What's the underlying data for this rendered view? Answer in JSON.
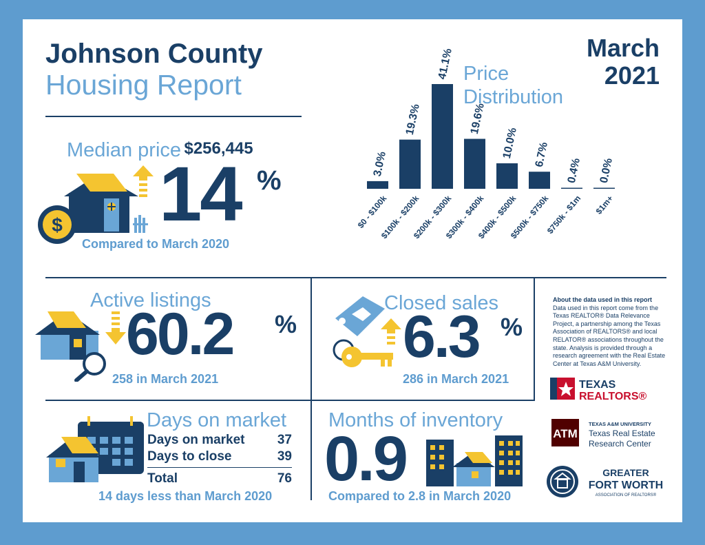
{
  "header": {
    "title_line1": "Johnson County",
    "title_line2": "Housing Report",
    "month": "March",
    "year": "2021"
  },
  "median": {
    "label": "Median price",
    "price": "$256,445",
    "change": "14",
    "unit": "%",
    "direction": "up",
    "comparison": "Compared to March 2020"
  },
  "price_distribution": {
    "title_line1": "Price",
    "title_line2": "Distribution"
  },
  "chart_data": {
    "type": "bar",
    "categories": [
      "$0 - $100k",
      "$100k - $200k",
      "$200k - $300k",
      "$300k - $400k",
      "$400k - $500k",
      "$500k - $750k",
      "$750k - $1m",
      "$1m+"
    ],
    "values": [
      3.0,
      19.3,
      41.1,
      19.6,
      10.0,
      6.7,
      0.4,
      0.0
    ],
    "value_labels": [
      "3.0%",
      "19.3%",
      "41.1%",
      "19.6%",
      "10.0%",
      "6.7%",
      "0.4%",
      "0.0%"
    ],
    "ylim": [
      0,
      41.1
    ],
    "grid": false,
    "bar_color": "#1a3f66"
  },
  "active_listings": {
    "label": "Active listings",
    "change": "60.2",
    "unit": "%",
    "direction": "down",
    "detail": "258 in March 2021"
  },
  "closed_sales": {
    "label": "Closed sales",
    "change": "6.3",
    "unit": "%",
    "direction": "up",
    "detail": "286 in March 2021"
  },
  "days_on_market": {
    "label": "Days on market",
    "rows": [
      {
        "label": "Days on market",
        "value": "37"
      },
      {
        "label": "Days to close",
        "value": "39"
      }
    ],
    "total_label": "Total",
    "total_value": "76",
    "comparison": "14 days less than March 2020"
  },
  "months_inventory": {
    "label": "Months of inventory",
    "value": "0.9",
    "comparison": "Compared to 2.8 in March 2020"
  },
  "about": {
    "heading": "About the data used in this report",
    "body": "Data used in this report come from the Texas REALTOR® Data Relevance Project, a partnership among the Texas Association of REALTORS® and local RELATOR® associations throughout the state. Analysis is provided through a research agreement with the Real Estate Center at Texas A&M University."
  },
  "logos": {
    "texas_realtors_line1": "TEXAS",
    "texas_realtors_line2": "REALTORS®",
    "tamu_small": "TEXAS A&M UNIVERSITY",
    "tamu_line1": "Texas Real Estate",
    "tamu_line2": "Research Center",
    "gfw_line1": "GREATER",
    "gfw_line2": "FORT WORTH",
    "gfw_line3": "ASSOCIATION OF REALTORS®"
  },
  "colors": {
    "navy": "#1a3f66",
    "light_blue": "#6aa6d6",
    "frame": "#5e9ccf",
    "yellow": "#f4c430",
    "red": "#c8102e",
    "maroon": "#500000"
  }
}
